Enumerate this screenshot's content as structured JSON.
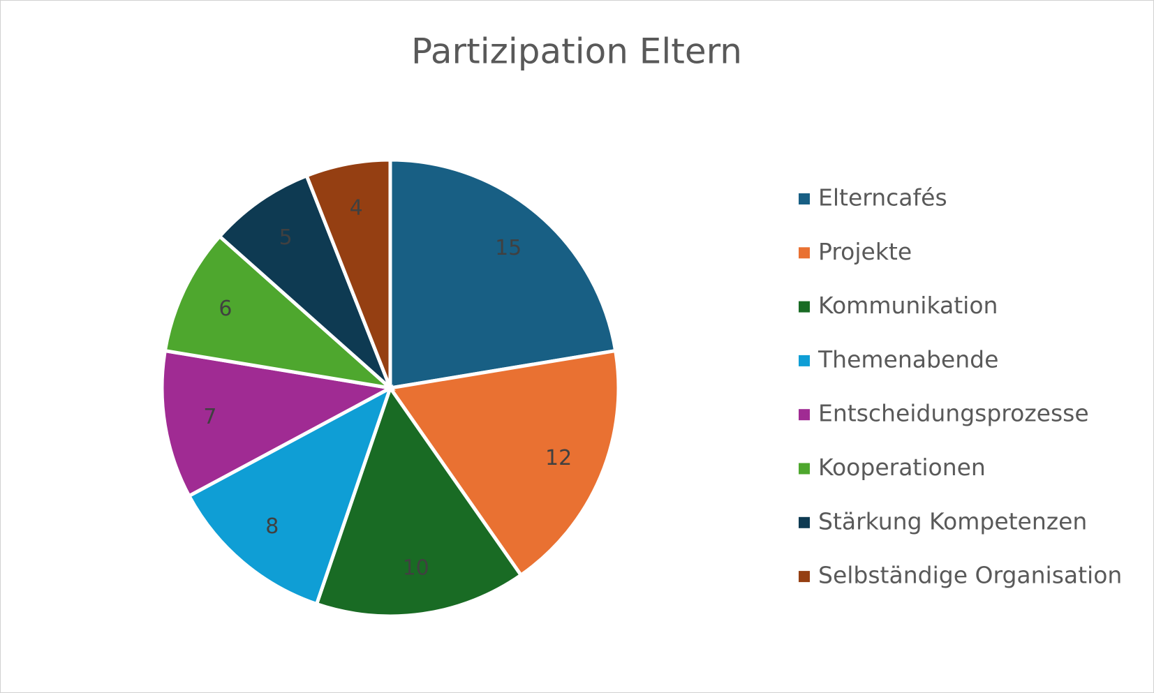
{
  "chart_data": {
    "type": "pie",
    "title": "Partizipation Eltern",
    "categories": [
      "Elterncafés",
      "Projekte",
      "Kommunikation",
      "Themenabende",
      "Entscheidungsprozesse",
      "Kooperationen",
      "Stärkung Kompetenzen",
      "Selbständige Organisation"
    ],
    "values": [
      15,
      12,
      10,
      8,
      7,
      6,
      5,
      4
    ],
    "colors": [
      "#185f84",
      "#e97132",
      "#196b24",
      "#0f9ed5",
      "#a02b93",
      "#4ea72e",
      "#0e3a52",
      "#953f12"
    ],
    "legend": "right"
  }
}
